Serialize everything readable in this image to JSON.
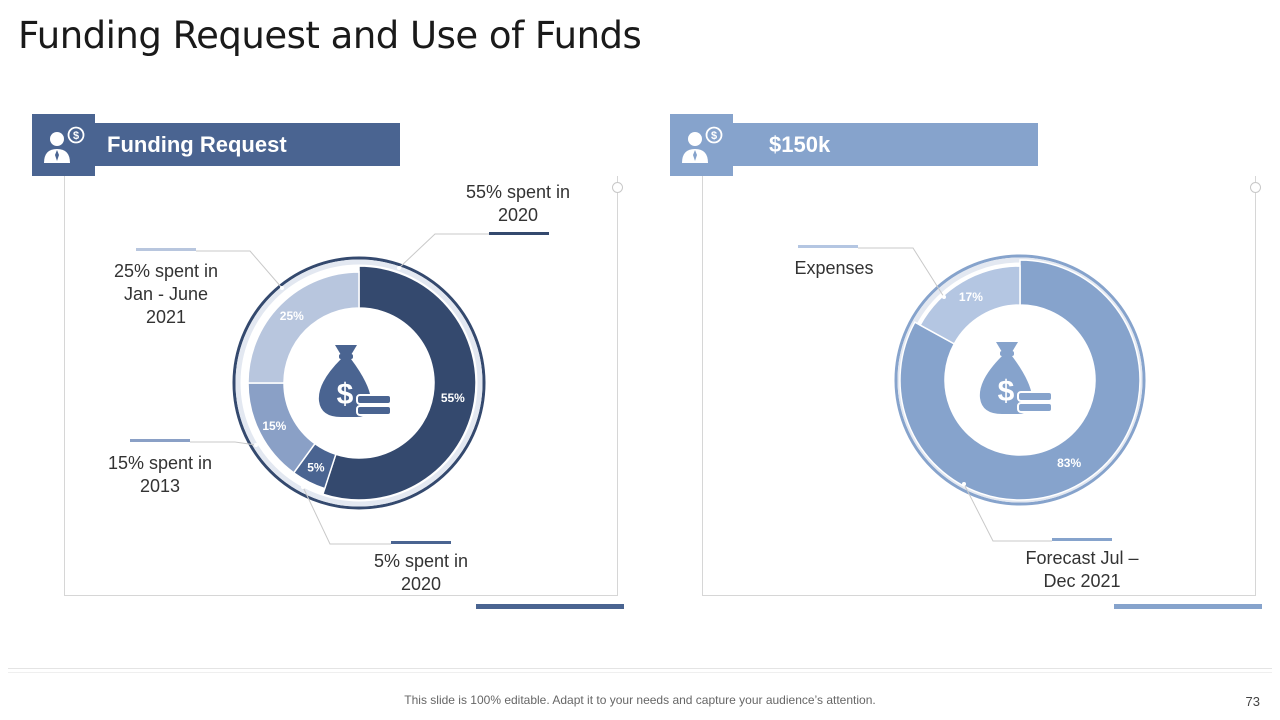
{
  "title": "Funding Request and Use of Funds",
  "colors": {
    "dark": "#34496e",
    "mid": "#4a6491",
    "steel": "#8aa0c6",
    "pale": "#b8c6de",
    "light": "#86a3cc",
    "lighter": "#b4c6e2"
  },
  "left": {
    "header": "Funding Request",
    "icon": "user-dollar-icon",
    "center_icon": "money-bag-icon",
    "labels": {
      "a": "55% spent in 2020",
      "b": "25% spent in Jan - June 2021",
      "c": "15% spent in 2013",
      "d": "5% spent in 2020"
    }
  },
  "right": {
    "header": "$150k",
    "icon": "user-dollar-icon",
    "center_icon": "money-bag-icon",
    "labels": {
      "a": "Expenses",
      "b": "Forecast Jul – Dec 2021"
    }
  },
  "chart_data": [
    {
      "type": "pie",
      "title": "Funding Request",
      "labels": [
        "55% spent in 2020",
        "5% spent in 2020",
        "15% spent in 2013",
        "25% spent in Jan - June 2021"
      ],
      "values": [
        55,
        5,
        15,
        25
      ],
      "data_labels": [
        "55%",
        "5%",
        "15%",
        "25%"
      ],
      "colors": [
        "#34496e",
        "#4a6491",
        "#8aa0c6",
        "#b8c6de"
      ]
    },
    {
      "type": "pie",
      "title": "$150k",
      "labels": [
        "Forecast Jul – Dec 2021",
        "Expenses"
      ],
      "values": [
        83,
        17
      ],
      "data_labels": [
        "83%",
        "17%"
      ],
      "colors": [
        "#86a3cc",
        "#b4c6e2"
      ]
    }
  ],
  "footer": {
    "note": "This slide is 100% editable. Adapt it to your needs and capture your audience’s attention.",
    "page": "73"
  }
}
